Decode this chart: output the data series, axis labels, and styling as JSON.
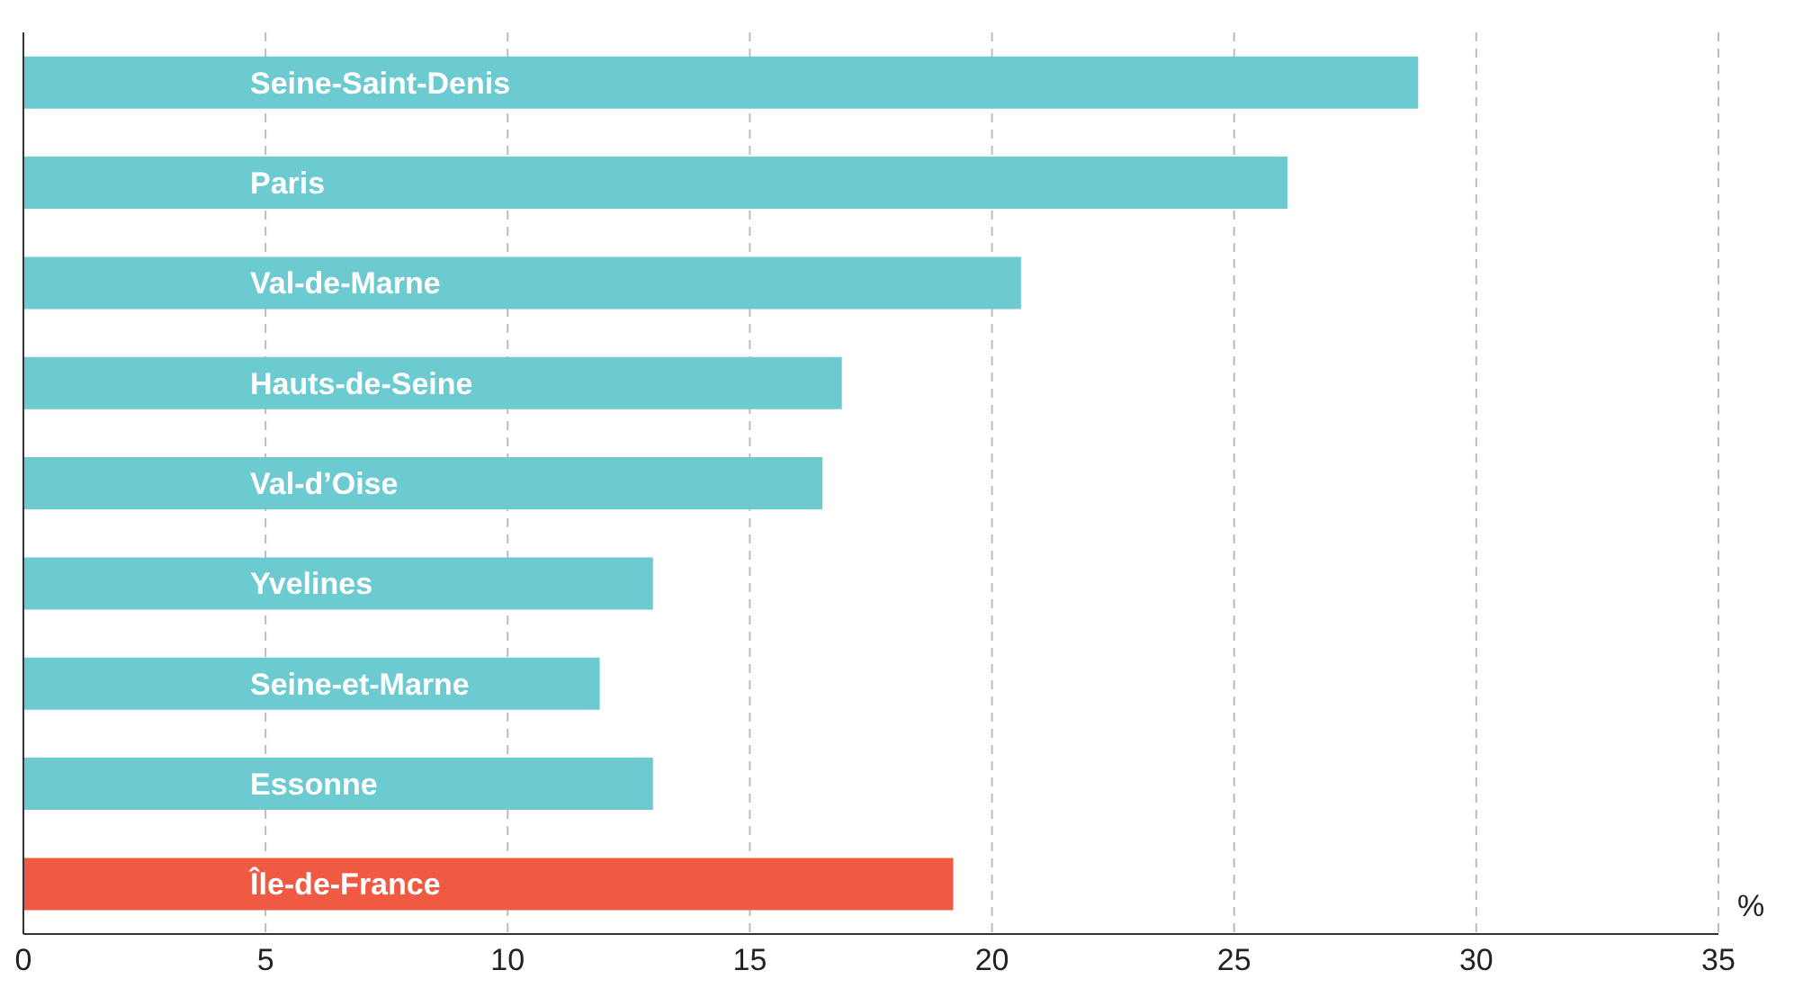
{
  "chart_data": {
    "type": "bar",
    "orientation": "horizontal",
    "categories": [
      "Seine-Saint-Denis",
      "Paris",
      "Val-de-Marne",
      "Hauts-de-Seine",
      "Val-d’Oise",
      "Yvelines",
      "Seine-et-Marne",
      "Essonne",
      "Île-de-France"
    ],
    "values": [
      28.8,
      26.1,
      20.6,
      16.9,
      16.5,
      13.0,
      11.9,
      13.0,
      19.2
    ],
    "colors": [
      "#6ccad1",
      "#6ccad1",
      "#6ccad1",
      "#6ccad1",
      "#6ccad1",
      "#6ccad1",
      "#6ccad1",
      "#6ccad1",
      "#f05a42"
    ],
    "xlim": [
      0,
      35
    ],
    "xticks": [
      0,
      5,
      10,
      15,
      20,
      25,
      30,
      35
    ],
    "xlabel": "%",
    "grid": "x"
  }
}
